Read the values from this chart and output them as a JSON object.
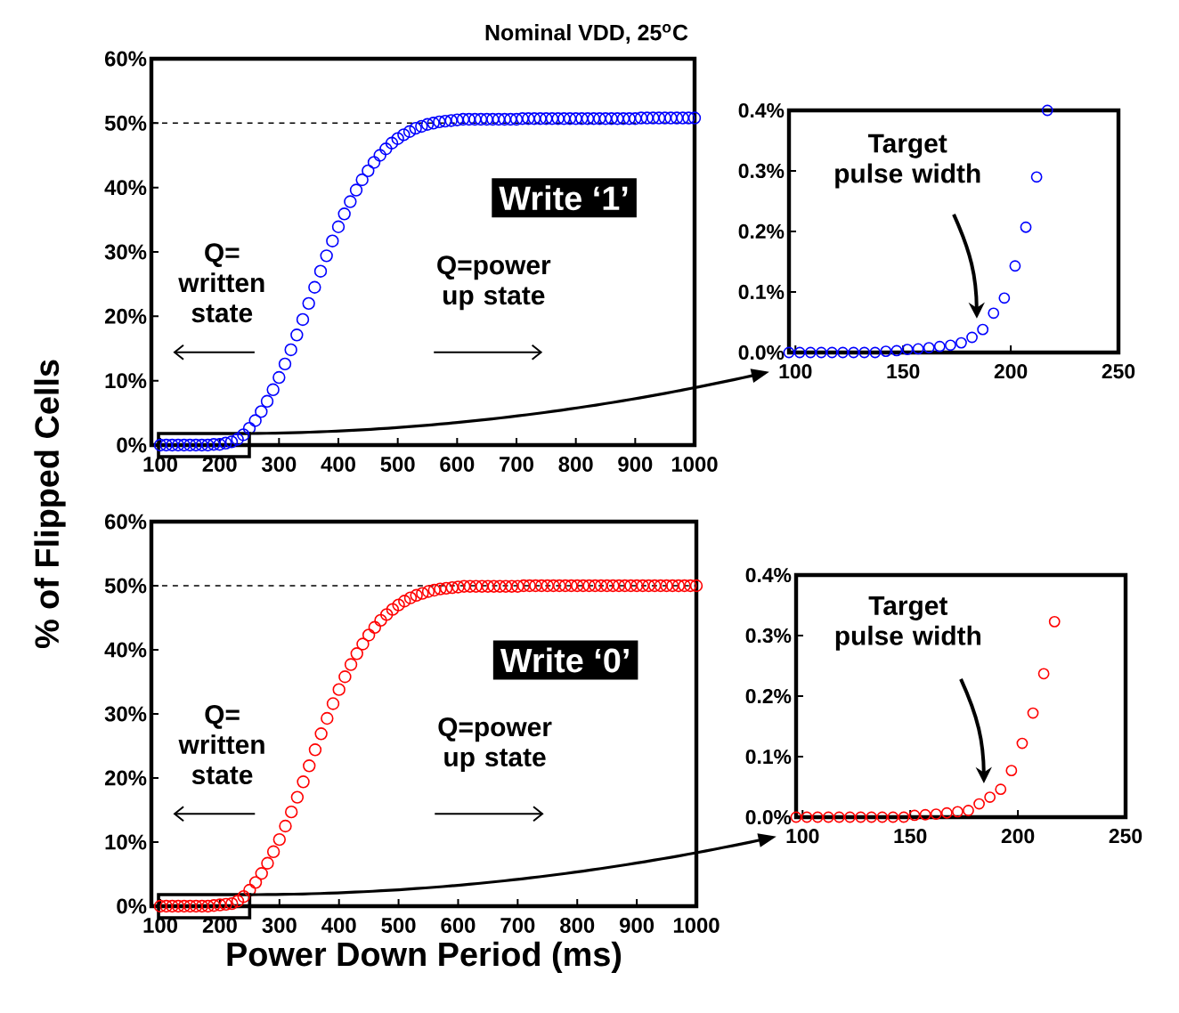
{
  "chart_data": [
    {
      "type": "scatter",
      "title": "Nominal VDD, 25$^{o}$C",
      "ylabel": "% of Flipped Cells",
      "marker": "circle",
      "x": [
        100,
        110,
        120,
        130,
        140,
        150,
        160,
        170,
        180,
        190,
        200,
        210,
        220,
        230,
        240,
        250,
        260,
        270,
        280,
        290,
        300,
        310,
        320,
        330,
        340,
        350,
        360,
        370,
        380,
        390,
        400,
        410,
        420,
        430,
        440,
        450,
        460,
        470,
        480,
        490,
        500,
        510,
        520,
        530,
        540,
        550,
        560,
        570,
        580,
        590,
        600,
        610,
        620,
        630,
        640,
        650,
        660,
        670,
        680,
        690,
        700,
        710,
        720,
        730,
        740,
        750,
        760,
        770,
        780,
        790,
        800,
        810,
        820,
        830,
        840,
        850,
        860,
        870,
        880,
        890,
        900,
        910,
        920,
        930,
        940,
        950,
        960,
        970,
        980,
        990,
        1000
      ],
      "series": [
        {
          "color": "#0000ff",
          "values": [
            0,
            0,
            0,
            0,
            0,
            0,
            0,
            0,
            0,
            0.1,
            0.1,
            0.3,
            0.5,
            0.9,
            1.6,
            2.6,
            3.8,
            5.2,
            6.8,
            8.6,
            10.5,
            12.6,
            14.8,
            17.1,
            19.5,
            22,
            24.5,
            27,
            29.4,
            31.7,
            33.9,
            35.9,
            37.8,
            39.6,
            41.2,
            42.6,
            43.9,
            45,
            46,
            46.9,
            47.6,
            48.2,
            48.7,
            49.2,
            49.5,
            49.8,
            50,
            50.2,
            50.3,
            50.4,
            50.5,
            50.6,
            50.6,
            50.6,
            50.6,
            50.6,
            50.6,
            50.6,
            50.6,
            50.6,
            50.6,
            50.7,
            50.7,
            50.7,
            50.7,
            50.7,
            50.7,
            50.7,
            50.7,
            50.7,
            50.7,
            50.7,
            50.7,
            50.7,
            50.7,
            50.7,
            50.7,
            50.7,
            50.7,
            50.7,
            50.7,
            50.8,
            50.8,
            50.8,
            50.8,
            50.8,
            50.8,
            50.8,
            50.8,
            50.8,
            50.8
          ]
        }
      ],
      "xlim": [
        85,
        1000
      ],
      "ylim": [
        0,
        60
      ],
      "xticks": [
        100,
        200,
        300,
        400,
        500,
        600,
        700,
        800,
        900,
        1000
      ],
      "yticks": [
        {
          "value": 0,
          "label": "0%"
        },
        {
          "value": 10,
          "label": "10%"
        },
        {
          "value": 20,
          "label": "20%"
        },
        {
          "value": 30,
          "label": "30%"
        },
        {
          "value": 40,
          "label": "40%"
        },
        {
          "value": 50,
          "label": "50%"
        },
        {
          "value": 60,
          "label": "60%"
        }
      ],
      "ref_lines": [
        {
          "axis": "y",
          "value": 50,
          "line_style": "dashed"
        }
      ],
      "annotations": [
        "Write ‘1’",
        "Q= written state",
        "Q=power up state"
      ]
    },
    {
      "type": "scatter",
      "marker": "circle",
      "x": [
        97,
        102,
        107,
        112,
        117,
        122,
        127,
        132,
        137,
        142,
        147,
        152,
        157,
        162,
        167,
        172,
        177,
        182,
        187,
        192,
        197,
        202,
        207,
        212,
        217
      ],
      "series": [
        {
          "color": "#0000ff",
          "values": [
            0,
            0,
            0,
            0,
            0,
            0,
            0,
            0,
            0,
            0.002,
            0.003,
            0.005,
            0.006,
            0.008,
            0.01,
            0.012,
            0.016,
            0.025,
            0.038,
            0.065,
            0.09,
            0.143,
            0.207,
            0.29,
            0.4
          ]
        }
      ],
      "xlim": [
        97,
        250
      ],
      "ylim": [
        0,
        0.4
      ],
      "xticks": [
        100,
        150,
        200,
        250
      ],
      "yticks": [
        {
          "value": 0,
          "label": "0.0%"
        },
        {
          "value": 0.1,
          "label": "0.1%"
        },
        {
          "value": 0.2,
          "label": "0.2%"
        },
        {
          "value": 0.3,
          "label": "0.3%"
        },
        {
          "value": 0.4,
          "label": "0.4%"
        }
      ],
      "annotations": [
        "Target pulse width"
      ]
    },
    {
      "type": "scatter",
      "xlabel": "Power Down Period (ms)",
      "marker": "circle",
      "x": [
        100,
        110,
        120,
        130,
        140,
        150,
        160,
        170,
        180,
        190,
        200,
        210,
        220,
        230,
        240,
        250,
        260,
        270,
        280,
        290,
        300,
        310,
        320,
        330,
        340,
        350,
        360,
        370,
        380,
        390,
        400,
        410,
        420,
        430,
        440,
        450,
        460,
        470,
        480,
        490,
        500,
        510,
        520,
        530,
        540,
        550,
        560,
        570,
        580,
        590,
        600,
        610,
        620,
        630,
        640,
        650,
        660,
        670,
        680,
        690,
        700,
        710,
        720,
        730,
        740,
        750,
        760,
        770,
        780,
        790,
        800,
        810,
        820,
        830,
        840,
        850,
        860,
        870,
        880,
        890,
        900,
        910,
        920,
        930,
        940,
        950,
        960,
        970,
        980,
        990,
        1000
      ],
      "series": [
        {
          "color": "#ff0000",
          "values": [
            0,
            0,
            0,
            0,
            0,
            0,
            0,
            0,
            0,
            0.1,
            0.2,
            0.3,
            0.4,
            0.8,
            1.5,
            2.5,
            3.7,
            5.1,
            6.7,
            8.5,
            10.4,
            12.5,
            14.7,
            17,
            19.4,
            21.9,
            24.4,
            26.9,
            29.3,
            31.6,
            33.8,
            35.8,
            37.7,
            39.4,
            40.9,
            42.3,
            43.5,
            44.6,
            45.5,
            46.3,
            47,
            47.6,
            48.1,
            48.5,
            48.8,
            49.1,
            49.3,
            49.5,
            49.6,
            49.7,
            49.8,
            49.9,
            49.9,
            49.9,
            49.9,
            49.9,
            49.9,
            49.9,
            49.9,
            49.9,
            49.9,
            50,
            50,
            50,
            50,
            50,
            50,
            50,
            50,
            50,
            50,
            50,
            50,
            50,
            50,
            50,
            50,
            50,
            50,
            50,
            50,
            50,
            50,
            50,
            50,
            50,
            50,
            50,
            50,
            50,
            50
          ]
        }
      ],
      "xlim": [
        85,
        1000
      ],
      "ylim": [
        0,
        60
      ],
      "xticks": [
        100,
        200,
        300,
        400,
        500,
        600,
        700,
        800,
        900,
        1000
      ],
      "yticks": [
        {
          "value": 0,
          "label": "0%"
        },
        {
          "value": 10,
          "label": "10%"
        },
        {
          "value": 20,
          "label": "20%"
        },
        {
          "value": 30,
          "label": "30%"
        },
        {
          "value": 40,
          "label": "40%"
        },
        {
          "value": 50,
          "label": "50%"
        },
        {
          "value": 60,
          "label": "60%"
        }
      ],
      "ref_lines": [
        {
          "axis": "y",
          "value": 50,
          "line_style": "dashed"
        }
      ],
      "annotations": [
        "Write ‘0’",
        "Q= written state",
        "Q=power up state"
      ]
    },
    {
      "type": "scatter",
      "marker": "circle",
      "x": [
        97,
        102,
        107,
        112,
        117,
        122,
        127,
        132,
        137,
        142,
        147,
        152,
        157,
        162,
        167,
        172,
        177,
        182,
        187,
        192,
        197,
        202,
        207,
        212,
        217
      ],
      "series": [
        {
          "color": "#ff0000",
          "values": [
            0,
            0,
            0,
            0,
            0,
            0,
            0,
            0,
            0,
            0,
            0,
            0.003,
            0.004,
            0.005,
            0.007,
            0.009,
            0.011,
            0.022,
            0.033,
            0.046,
            0.077,
            0.122,
            0.172,
            0.237,
            0.323
          ]
        }
      ],
      "xlim": [
        97,
        250
      ],
      "ylim": [
        0,
        0.4
      ],
      "xticks": [
        100,
        150,
        200,
        250
      ],
      "yticks": [
        {
          "value": 0,
          "label": "0.0%"
        },
        {
          "value": 0.1,
          "label": "0.1%"
        },
        {
          "value": 0.2,
          "label": "0.2%"
        },
        {
          "value": 0.3,
          "label": "0.3%"
        },
        {
          "value": 0.4,
          "label": "0.4%"
        }
      ],
      "annotations": [
        "Target pulse width"
      ]
    }
  ]
}
